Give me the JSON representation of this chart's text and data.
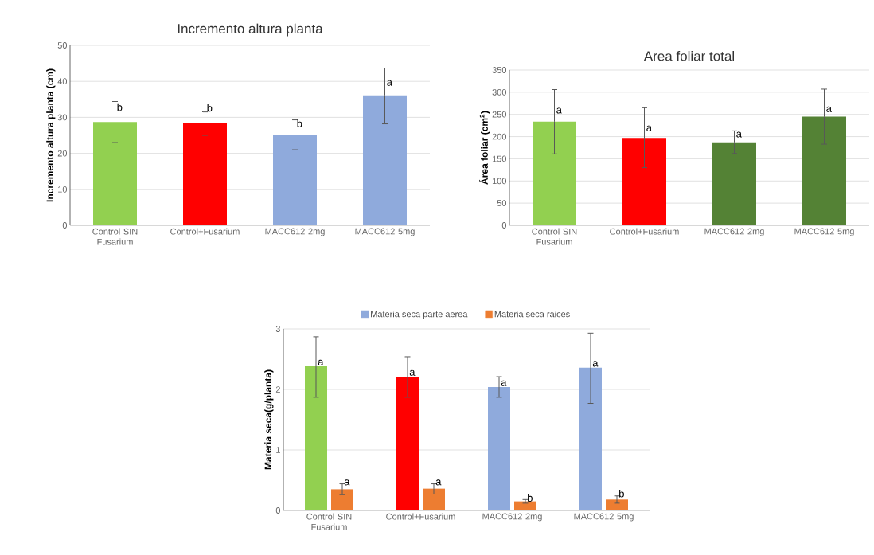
{
  "chart_data": [
    {
      "type": "bar",
      "title": "Incremento altura planta",
      "ylabel": "Incremento altura planta (cm)",
      "categories": [
        "Control SIN Fusarium",
        "Control+Fusarium",
        "MACC612 2mg",
        "MACC612 5mg"
      ],
      "values": [
        28.7,
        28.3,
        25.2,
        36.1
      ],
      "colors": [
        "#92d050",
        "#ff0000",
        "#8faadc",
        "#8faadc"
      ],
      "errors": [
        [
          23,
          34.4
        ],
        [
          25,
          31.5
        ],
        [
          21,
          29.3
        ],
        [
          28.2,
          43.7
        ]
      ],
      "ylim": [
        0,
        50
      ],
      "yticks": [
        0,
        10,
        20,
        30,
        40,
        50
      ],
      "grid": "y",
      "annotations": [
        {
          "text": "b",
          "x": "Control SIN Fusarium",
          "y": 31.5
        },
        {
          "text": "b",
          "x": "Control+Fusarium",
          "y": 31.3
        },
        {
          "text": "b",
          "x": "MACC612 2mg",
          "y": 27
        },
        {
          "text": "a",
          "x": "MACC612 5mg",
          "y": 38.5
        }
      ]
    },
    {
      "type": "bar",
      "title": "Area foliar total",
      "ylabel": "Área foliar (cm$^{2}$)",
      "categories": [
        "Control SIN Fusarium",
        "Control+Fusarium",
        "MACC612 2mg",
        "MACC612 5mg"
      ],
      "values": [
        234,
        197,
        187,
        245
      ],
      "colors": [
        "#92d050",
        "#ff0000",
        "#548235",
        "#548235"
      ],
      "errors": [
        [
          161,
          306
        ],
        [
          130,
          265
        ],
        [
          162,
          213
        ],
        [
          183,
          307
        ]
      ],
      "ylim": [
        0,
        350
      ],
      "yticks": [
        0,
        50,
        100,
        150,
        200,
        250,
        300,
        350
      ],
      "grid": "y",
      "annotations": [
        {
          "text": "a",
          "x": "Control SIN Fusarium",
          "y": 250
        },
        {
          "text": "a",
          "x": "Control+Fusarium",
          "y": 210
        },
        {
          "text": "a",
          "x": "MACC612 2mg",
          "y": 196
        },
        {
          "text": "a",
          "x": "MACC612 5mg",
          "y": 253
        }
      ]
    },
    {
      "type": "bar",
      "ylabel": "Materia seca(g/planta)",
      "categories": [
        "Control SIN Fusarium",
        "Control+Fusarium",
        "MACC612 2mg",
        "MACC612 5mg"
      ],
      "series": [
        {
          "name": "Materia seca parte aerea",
          "color": "#8faadc",
          "colors": [
            "#92d050",
            "#ff0000",
            "#8faadc",
            "#8faadc"
          ],
          "values": [
            2.38,
            2.21,
            2.04,
            2.36
          ],
          "errors": [
            [
              1.87,
              2.87
            ],
            [
              1.87,
              2.54
            ],
            [
              1.87,
              2.21
            ],
            [
              1.77,
              2.93
            ]
          ]
        },
        {
          "name": "Materia seca raices",
          "color": "#ed7d31",
          "values": [
            0.35,
            0.36,
            0.15,
            0.18
          ],
          "errors": [
            [
              0.26,
              0.44
            ],
            [
              0.27,
              0.44
            ],
            [
              0.12,
              0.18
            ],
            [
              0.12,
              0.24
            ]
          ]
        }
      ],
      "ylim": [
        0,
        3
      ],
      "yticks": [
        0,
        1,
        2,
        3
      ],
      "grid": "y",
      "legend": "top",
      "annotations": [
        {
          "text": "a",
          "x": "Control SIN Fusarium",
          "y": 2.38
        },
        {
          "text": "a",
          "x": "Control+Fusarium",
          "y": 2.21
        },
        {
          "text": "a",
          "x": "MACC612 2mg",
          "y": 2.04
        },
        {
          "text": "a",
          "x": "MACC612 5mg",
          "y": 2.36
        },
        {
          "text": "a",
          "x": "Control SIN Fusarium",
          "y": 0.4
        },
        {
          "text": "a",
          "x": "Control+Fusarium",
          "y": 0.4
        },
        {
          "text": "b",
          "x": "MACC612 2mg",
          "y": 0.13
        },
        {
          "text": "b",
          "x": "MACC612 5mg",
          "y": 0.2
        }
      ]
    }
  ]
}
